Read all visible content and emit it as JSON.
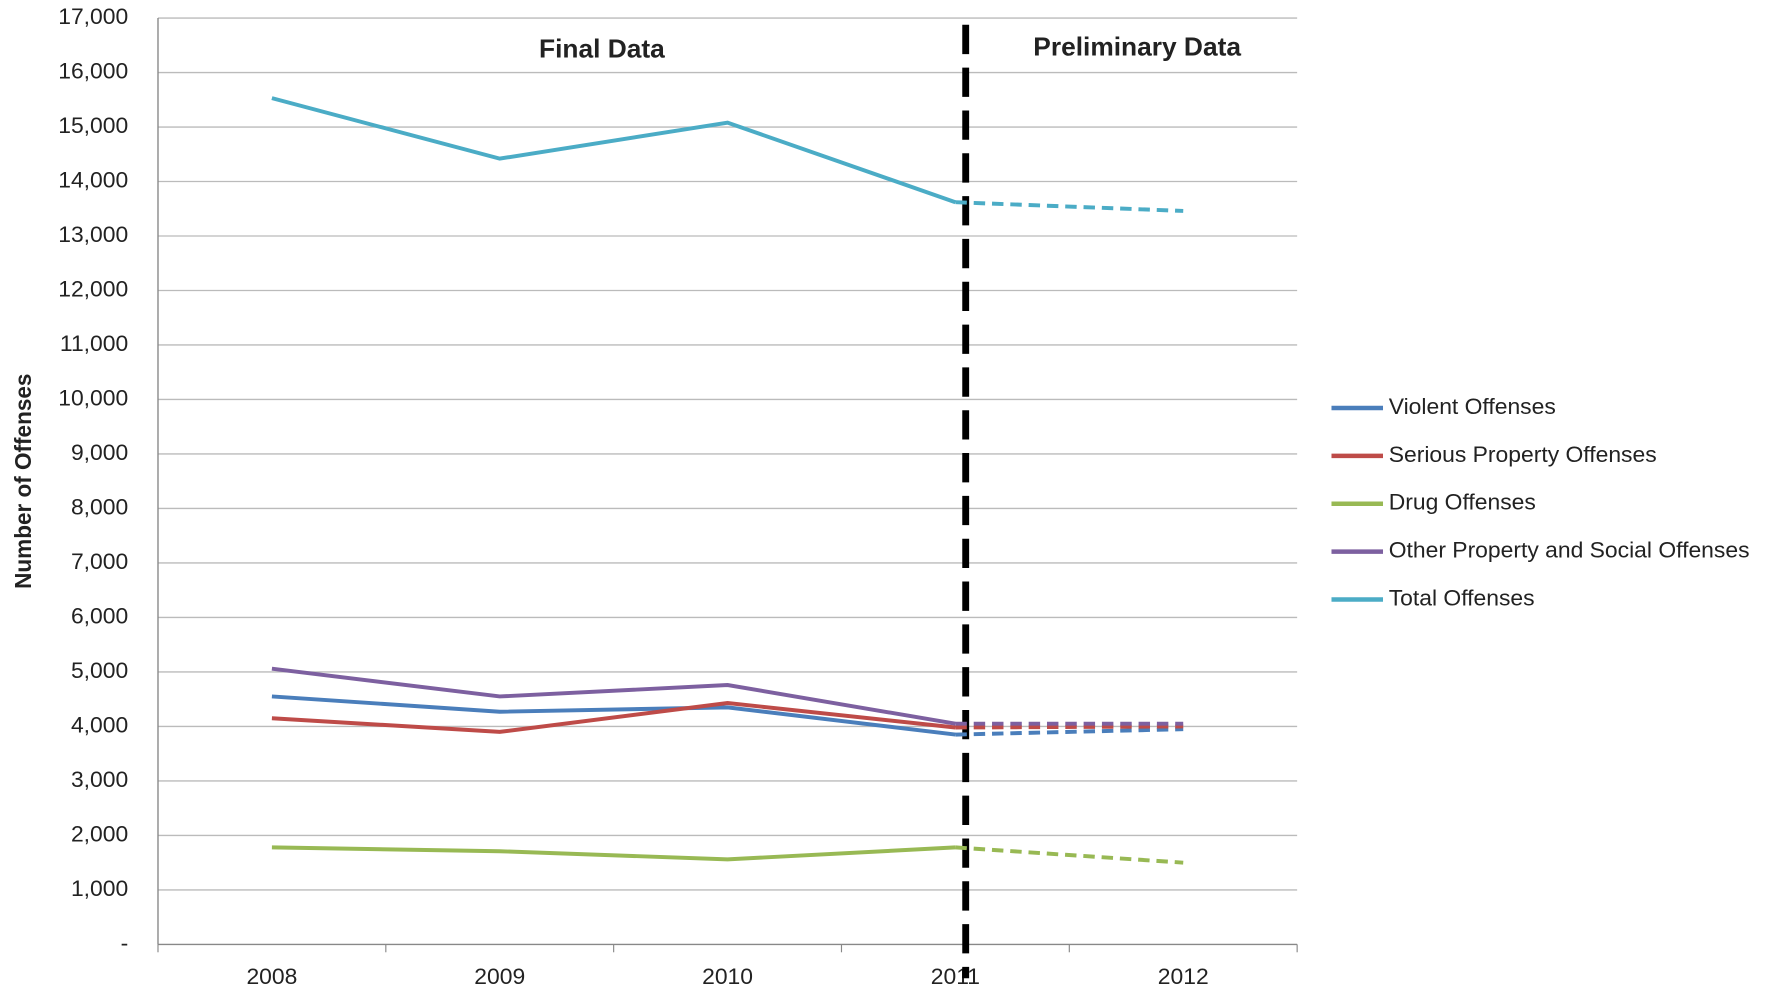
{
  "chart_data": {
    "type": "line",
    "y_label": "Number of Offenses",
    "annotations": [
      "Final Data",
      "Preliminary Data"
    ],
    "preliminary_from": "2011",
    "categories": [
      "2008",
      "2009",
      "2010",
      "2011",
      "2012"
    ],
    "series": [
      {
        "name": "Violent Offenses",
        "color": "#4a7ebb",
        "values": [
          4550,
          4270,
          4350,
          3850,
          3950
        ]
      },
      {
        "name": "Serious Property Offenses",
        "color": "#be4b48",
        "values": [
          4150,
          3900,
          4430,
          3980,
          4000
        ]
      },
      {
        "name": "Drug Offenses",
        "color": "#98b954",
        "values": [
          1780,
          1710,
          1560,
          1780,
          1500
        ]
      },
      {
        "name": "Other Property and Social Offenses",
        "color": "#7d60a0",
        "values": [
          5060,
          4550,
          4760,
          4050,
          4050
        ]
      },
      {
        "name": "Total Offenses",
        "color": "#4bacc6",
        "values": [
          15530,
          14420,
          15080,
          13620,
          13460
        ]
      }
    ],
    "ylim": [
      0,
      17000
    ],
    "yticks": [
      {
        "value": 0,
        "label": "-"
      },
      {
        "value": 1000,
        "label": "1,000"
      },
      {
        "value": 2000,
        "label": "2,000"
      },
      {
        "value": 3000,
        "label": "3,000"
      },
      {
        "value": 4000,
        "label": "4,000"
      },
      {
        "value": 5000,
        "label": "5,000"
      },
      {
        "value": 6000,
        "label": "6,000"
      },
      {
        "value": 7000,
        "label": "7,000"
      },
      {
        "value": 8000,
        "label": "8,000"
      },
      {
        "value": 9000,
        "label": "9,000"
      },
      {
        "value": 10000,
        "label": "10,000"
      },
      {
        "value": 11000,
        "label": "11,000"
      },
      {
        "value": 12000,
        "label": "12,000"
      },
      {
        "value": 13000,
        "label": "13,000"
      },
      {
        "value": 14000,
        "label": "14,000"
      },
      {
        "value": 15000,
        "label": "15,000"
      },
      {
        "value": 16000,
        "label": "16,000"
      },
      {
        "value": 17000,
        "label": "17,000"
      }
    ],
    "grid": true,
    "legend": "right"
  }
}
